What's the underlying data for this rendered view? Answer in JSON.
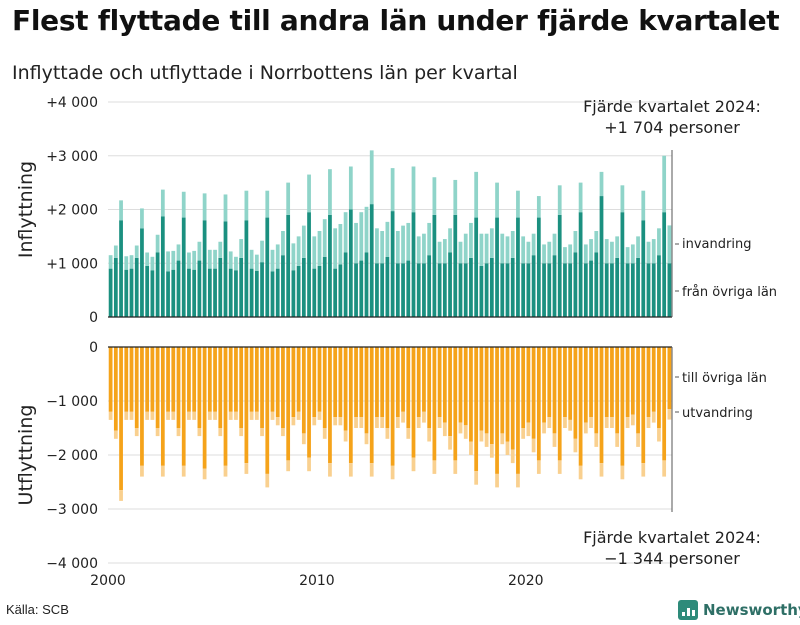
{
  "title": "Flest flyttade till andra län under fjärde kvartalet",
  "subtitle": "Inflyttade och utflyttade i Norrbottens län per kvartal",
  "source": "Källa: SCB",
  "brand": "Newsworthy",
  "colors": {
    "in_dark": "#1b9080",
    "in_light": "#8fd4c9",
    "out_dark": "#f5a31a",
    "out_light": "#f9d08f",
    "grid": "#dddddd"
  },
  "chart_data": {
    "type": "bar",
    "x_ticks": [
      "2000",
      "2010",
      "2020"
    ],
    "panels": [
      {
        "name": "inflyttning",
        "ylabel": "Inflyttning",
        "y_ticks": [
          "+4 000",
          "+3 000",
          "+2 000",
          "+1 000",
          "0"
        ],
        "ylim": [
          0,
          4000
        ],
        "legend": [
          "invandring",
          "från övriga län"
        ],
        "annotation": [
          "Fjärde kvartalet 2024:",
          "+1 704 personer"
        ],
        "series": [
          {
            "name": "från övriga län",
            "values": [
              900,
              1100,
              1800,
              880,
              900,
              1100,
              1650,
              950,
              870,
              1200,
              1870,
              850,
              880,
              1050,
              1850,
              900,
              880,
              1050,
              1800,
              900,
              900,
              1100,
              1780,
              900,
              870,
              1100,
              1800,
              900,
              860,
              1020,
              1850,
              850,
              900,
              1150,
              1900,
              870,
              950,
              1100,
              1950,
              900,
              950,
              1120,
              1900,
              900,
              980,
              1200,
              2000,
              1000,
              1050,
              1200,
              2100,
              1000,
              1000,
              1120,
              1970,
              1000,
              1000,
              1050,
              1950,
              1000,
              1000,
              1150,
              1900,
              1000,
              1000,
              1200,
              1900,
              1000,
              1000,
              1100,
              1850,
              950,
              1000,
              1100,
              1850,
              1000,
              1000,
              1100,
              1850,
              1000,
              1000,
              1150,
              1850,
              1000,
              1000,
              1150,
              1900,
              1000,
              1000,
              1200,
              1950,
              1000,
              1050,
              1200,
              2250,
              1000,
              1000,
              1100,
              1950,
              1000,
              1000,
              1100,
              1800,
              1000,
              1000,
              1150,
              1950,
              1000
            ]
          },
          {
            "name": "invandring",
            "values": [
              250,
              230,
              370,
              250,
              250,
              230,
              370,
              250,
              250,
              330,
              500,
              370,
              350,
              300,
              480,
              300,
              350,
              350,
              500,
              350,
              350,
              300,
              500,
              320,
              250,
              350,
              550,
              350,
              300,
              400,
              500,
              400,
              450,
              450,
              600,
              500,
              550,
              600,
              700,
              600,
              650,
              700,
              850,
              750,
              750,
              750,
              800,
              750,
              900,
              850,
              1000,
              650,
              600,
              650,
              800,
              600,
              700,
              700,
              850,
              500,
              550,
              600,
              700,
              400,
              450,
              450,
              650,
              400,
              550,
              650,
              850,
              600,
              550,
              550,
              650,
              550,
              500,
              500,
              500,
              500,
              400,
              400,
              400,
              350,
              400,
              400,
              550,
              300,
              350,
              400,
              550,
              350,
              400,
              400,
              450,
              450,
              400,
              400,
              500,
              300,
              350,
              400,
              550,
              400,
              450,
              500,
              1050,
              704
            ]
          }
        ]
      },
      {
        "name": "utflyttning",
        "ylabel": "Utflyttning",
        "y_ticks": [
          "0",
          "−1 000",
          "−2 000",
          "−3 000",
          "−4 000"
        ],
        "ylim": [
          -4000,
          0
        ],
        "legend": [
          "till övriga län",
          "utvandring"
        ],
        "annotation": [
          "Fjärde kvartalet 2024:",
          "−1 344 personer"
        ],
        "series": [
          {
            "name": "till övriga län",
            "values": [
              -1200,
              -1550,
              -2650,
              -1200,
              -1200,
              -1500,
              -2200,
              -1200,
              -1200,
              -1500,
              -2200,
              -1200,
              -1200,
              -1500,
              -2200,
              -1200,
              -1200,
              -1500,
              -2250,
              -1200,
              -1200,
              -1500,
              -2200,
              -1200,
              -1200,
              -1500,
              -2150,
              -1200,
              -1200,
              -1500,
              -2350,
              -1200,
              -1300,
              -1500,
              -2100,
              -1300,
              -1200,
              -1600,
              -2050,
              -1300,
              -1200,
              -1500,
              -2150,
              -1300,
              -1300,
              -1550,
              -2150,
              -1300,
              -1300,
              -1600,
              -2150,
              -1300,
              -1300,
              -1500,
              -2200,
              -1300,
              -1200,
              -1500,
              -2050,
              -1300,
              -1200,
              -1500,
              -2100,
              -1300,
              -1400,
              -1650,
              -2100,
              -1400,
              -1450,
              -1750,
              -2300,
              -1550,
              -1600,
              -1800,
              -2350,
              -1600,
              -1750,
              -1900,
              -2350,
              -1500,
              -1400,
              -1700,
              -2100,
              -1400,
              -1300,
              -1600,
              -2100,
              -1300,
              -1350,
              -1700,
              -2200,
              -1400,
              -1300,
              -1600,
              -2150,
              -1300,
              -1300,
              -1600,
              -2200,
              -1300,
              -1250,
              -1600,
              -2150,
              -1300,
              -1200,
              -1500,
              -2100,
              -1150
            ]
          },
          {
            "name": "utvandring",
            "values": [
              -150,
              -150,
              -200,
              -150,
              -150,
              -150,
              -200,
              -150,
              -150,
              -150,
              -200,
              -150,
              -150,
              -150,
              -200,
              -150,
              -150,
              -150,
              -200,
              -150,
              -150,
              -150,
              -200,
              -150,
              -150,
              -150,
              -200,
              -150,
              -150,
              -150,
              -250,
              -150,
              -150,
              -150,
              -200,
              -150,
              -150,
              -200,
              -250,
              -150,
              -150,
              -200,
              -250,
              -150,
              -150,
              -200,
              -250,
              -200,
              -200,
              -200,
              -250,
              -200,
              -200,
              -200,
              -250,
              -200,
              -200,
              -200,
              -250,
              -200,
              -200,
              -250,
              -250,
              -200,
              -250,
              -250,
              -250,
              -200,
              -250,
              -250,
              -250,
              -200,
              -250,
              -250,
              -250,
              -200,
              -250,
              -250,
              -250,
              -200,
              -250,
              -250,
              -250,
              -200,
              -200,
              -250,
              -250,
              -200,
              -200,
              -250,
              -250,
              -200,
              -200,
              -250,
              -250,
              -200,
              -200,
              -250,
              -250,
              -200,
              -200,
              -250,
              -250,
              -200,
              -200,
              -250,
              -300,
              -194
            ]
          }
        ]
      }
    ]
  }
}
